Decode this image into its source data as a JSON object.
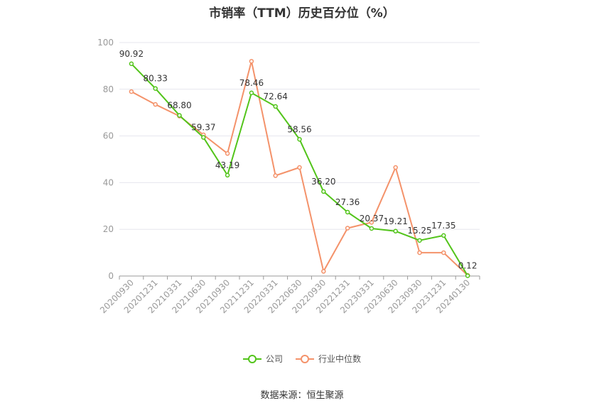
{
  "chart_data": {
    "type": "line",
    "title": "市销率（TTM）历史百分位（%）",
    "categories": [
      "20200930",
      "20201231",
      "20210331",
      "20210630",
      "20210930",
      "20211231",
      "20220331",
      "20220630",
      "20220930",
      "20221231",
      "20230331",
      "20230630",
      "20230930",
      "20231231",
      "20240130"
    ],
    "ylim": [
      0,
      100
    ],
    "yticks": [
      0,
      20,
      40,
      60,
      80,
      100
    ],
    "grid": true,
    "legend_position": "bottom",
    "series": [
      {
        "name": "公司",
        "color": "#52c41a",
        "values": [
          90.92,
          80.33,
          68.8,
          59.37,
          43.19,
          78.46,
          72.64,
          58.56,
          36.2,
          27.36,
          20.37,
          19.21,
          15.25,
          17.35,
          0.12
        ],
        "labels": [
          "90.92",
          "80.33",
          "68.80",
          "59.37",
          "43.19",
          "78.46",
          "72.64",
          "58.56",
          "36.20",
          "27.36",
          "20.37",
          "19.21",
          "15.25",
          "17.35",
          "0.12"
        ]
      },
      {
        "name": "行业中位数",
        "color": "#f4926a",
        "values": [
          79.0,
          73.5,
          68.5,
          60.5,
          52.5,
          92.0,
          43.0,
          46.5,
          2.0,
          20.5,
          23.0,
          46.5,
          10.0,
          10.0,
          0.3
        ]
      }
    ]
  },
  "source": "数据来源：恒生聚源"
}
